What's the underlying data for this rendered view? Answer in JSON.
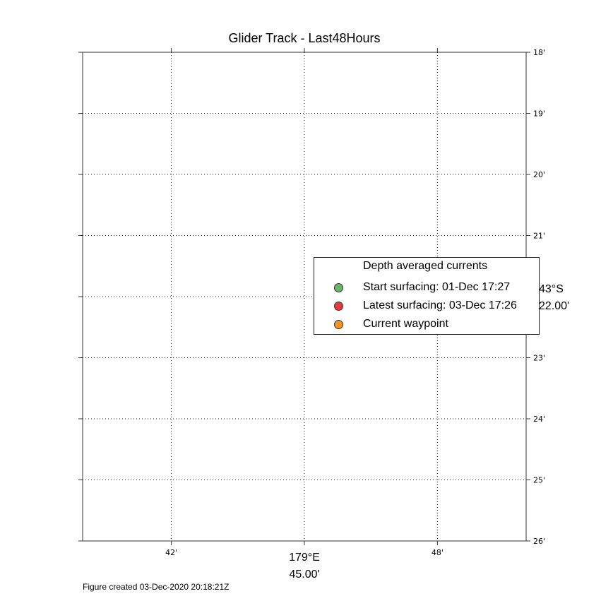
{
  "title": "Glider Track - Last48Hours",
  "footer": "Figure created 03-Dec-2020 20:18:21Z",
  "map": {
    "projection_center": {
      "lon_label": "179°E",
      "lon_min_label": "45.00'",
      "lat_label": "43°S",
      "lat_min_label": "22.00'"
    },
    "lat_ticks": [
      "18'",
      "19'",
      "20'",
      "21'",
      "22'",
      "23'",
      "24'",
      "25'",
      "26'"
    ],
    "lon_ticks": [
      "42'",
      "45'",
      "48'"
    ],
    "lon_tick_values_min": [
      42,
      45,
      48
    ],
    "lat_tick_values_min": [
      18,
      19,
      20,
      21,
      22,
      23,
      24,
      25,
      26
    ],
    "lon_range_min": [
      40.0,
      50.0
    ],
    "lat_range_min": [
      18,
      26
    ],
    "grid": true,
    "grid_style": "dotted"
  },
  "legend": {
    "header": "Depth averaged currents",
    "items": [
      {
        "label": "Start surfacing: 01-Dec 17:27",
        "color": "#6ab56a"
      },
      {
        "label": "Latest surfacing: 03-Dec 17:26",
        "color": "#e03c3c"
      },
      {
        "label": "Current waypoint",
        "color": "#f79326"
      }
    ],
    "placement": "center-right"
  }
}
